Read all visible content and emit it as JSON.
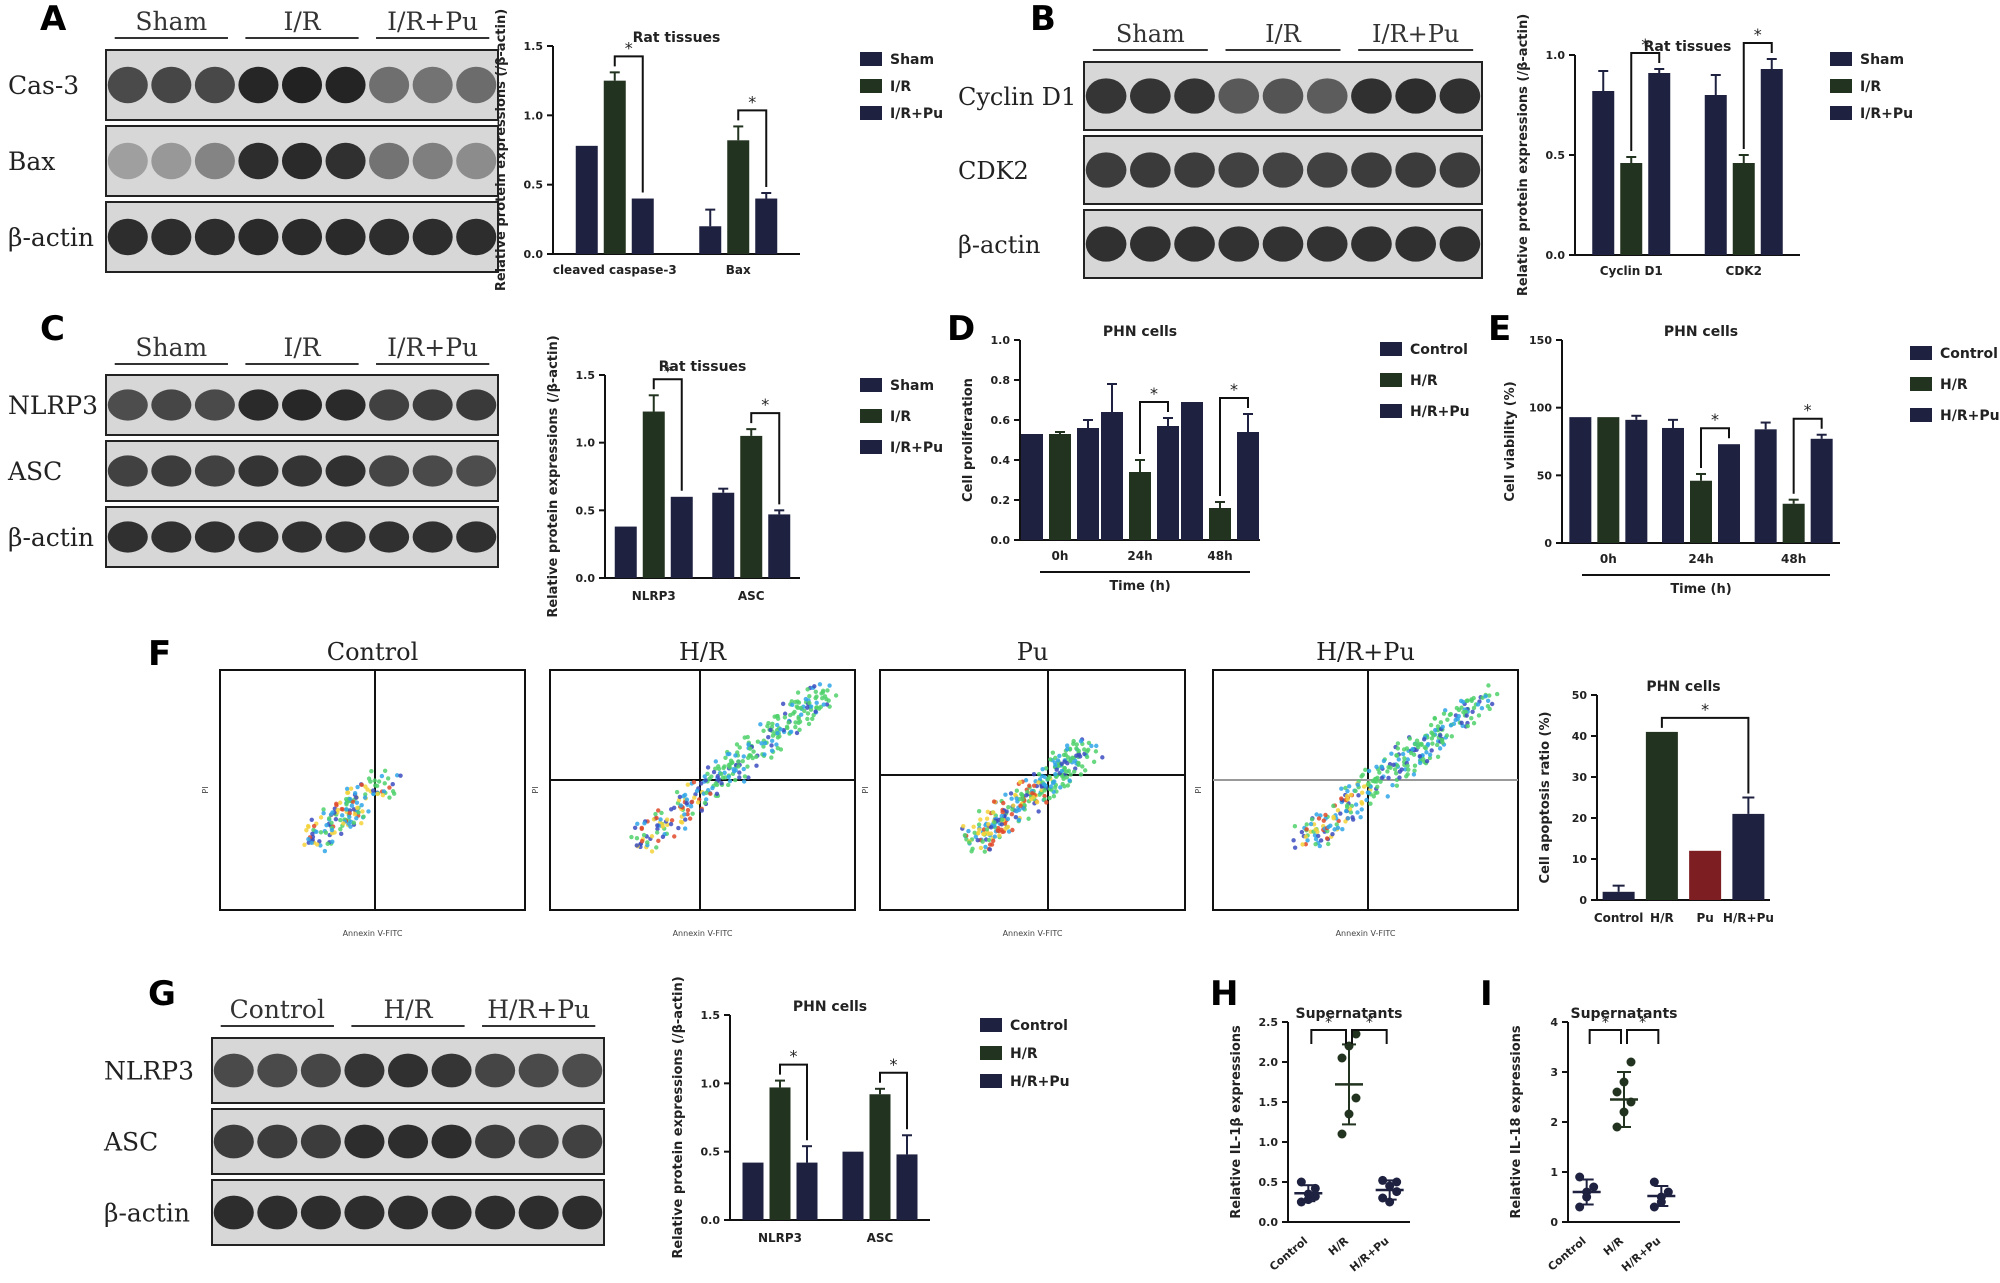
{
  "colors": {
    "navy": "#1e2140",
    "green": "#22331f",
    "red": "#7d1e23",
    "blotDark": "#1d1d1d",
    "blotBg": "#d7d7d7",
    "axis": "#111111"
  },
  "panels": {
    "A": {
      "letter": "A",
      "groups": [
        "Sham",
        "I/R",
        "I/R+Pu"
      ],
      "rows": [
        "Cas-3",
        "Bax",
        "β-actin"
      ],
      "intensity": [
        [
          0.72,
          0.74,
          0.73,
          0.95,
          0.97,
          0.96,
          0.48,
          0.45,
          0.5
        ],
        [
          0.18,
          0.22,
          0.35,
          0.9,
          0.92,
          0.88,
          0.45,
          0.38,
          0.3
        ],
        [
          0.9,
          0.9,
          0.9,
          0.92,
          0.92,
          0.92,
          0.9,
          0.9,
          0.9
        ]
      ]
    },
    "B": {
      "letter": "B",
      "groups": [
        "Sham",
        "I/R",
        "I/R+Pu"
      ],
      "rows": [
        "Cyclin D1",
        "CDK2",
        "β-actin"
      ],
      "intensity": [
        [
          0.85,
          0.86,
          0.86,
          0.62,
          0.65,
          0.6,
          0.88,
          0.9,
          0.88
        ],
        [
          0.8,
          0.82,
          0.8,
          0.78,
          0.76,
          0.77,
          0.8,
          0.81,
          0.8
        ],
        [
          0.88,
          0.88,
          0.88,
          0.87,
          0.87,
          0.87,
          0.88,
          0.88,
          0.88
        ]
      ]
    },
    "C": {
      "letter": "C",
      "groups": [
        "Sham",
        "I/R",
        "I/R+Pu"
      ],
      "rows": [
        "NLRP3",
        "ASC",
        "β-actin"
      ],
      "intensity": [
        [
          0.7,
          0.74,
          0.72,
          0.92,
          0.94,
          0.92,
          0.78,
          0.8,
          0.82
        ],
        [
          0.78,
          0.8,
          0.78,
          0.86,
          0.86,
          0.88,
          0.75,
          0.72,
          0.7
        ],
        [
          0.88,
          0.88,
          0.88,
          0.88,
          0.88,
          0.88,
          0.88,
          0.88,
          0.88
        ]
      ]
    },
    "G": {
      "letter": "G",
      "groups": [
        "Control",
        "H/R",
        "H/R+Pu"
      ],
      "rows": [
        "NLRP3",
        "ASC",
        "β-actin"
      ],
      "intensity": [
        [
          0.72,
          0.72,
          0.74,
          0.85,
          0.88,
          0.85,
          0.75,
          0.72,
          0.7
        ],
        [
          0.8,
          0.8,
          0.8,
          0.9,
          0.9,
          0.9,
          0.8,
          0.78,
          0.78
        ],
        [
          0.9,
          0.9,
          0.9,
          0.9,
          0.9,
          0.9,
          0.9,
          0.9,
          0.9
        ]
      ]
    },
    "D": {
      "letter": "D"
    },
    "E": {
      "letter": "E"
    },
    "F": {
      "letter": "F",
      "flow_titles": [
        "Control",
        "H/R",
        "Pu",
        "H/R+Pu"
      ],
      "y_axis": "PI",
      "x_axis": "Annexin V-FITC"
    },
    "H": {
      "letter": "H"
    },
    "I": {
      "letter": "I"
    }
  },
  "chart_data": [
    {
      "id": "A",
      "type": "bar",
      "title": "Rat tissues",
      "ylabel": "Relative protein expressions (/β-actin)",
      "xlabel": "",
      "categories": [
        "cleaved caspase-3",
        "Bax"
      ],
      "ylim": [
        0,
        1.5
      ],
      "yticks": [
        0,
        0.5,
        1.0,
        1.5
      ],
      "ytick_labels": [
        "0.0",
        "0.5",
        "1.0",
        "1.5"
      ],
      "series": [
        {
          "name": "Sham",
          "values": [
            0.78,
            0.2
          ],
          "errors": [
            0,
            0.12
          ]
        },
        {
          "name": "I/R",
          "values": [
            1.25,
            0.82
          ],
          "errors": [
            0.06,
            0.1
          ]
        },
        {
          "name": "I/R+Pu",
          "values": [
            0.4,
            0.4
          ],
          "errors": [
            0,
            0.04
          ]
        }
      ],
      "significance": [
        {
          "cat": 0,
          "from": 1,
          "to": 2,
          "label": "*"
        },
        {
          "cat": 1,
          "from": 1,
          "to": 2,
          "label": "*"
        }
      ]
    },
    {
      "id": "B",
      "type": "bar",
      "title": "Rat tissues",
      "ylabel": "Relative protein expressions (/β-actin)",
      "xlabel": "",
      "categories": [
        "Cyclin D1",
        "CDK2"
      ],
      "ylim": [
        0,
        1.0
      ],
      "yticks": [
        0,
        0.5,
        1.0
      ],
      "ytick_labels": [
        "0.0",
        "0.5",
        "1.0"
      ],
      "series": [
        {
          "name": "Sham",
          "values": [
            0.82,
            0.8
          ],
          "errors": [
            0.1,
            0.1
          ]
        },
        {
          "name": "I/R",
          "values": [
            0.46,
            0.46
          ],
          "errors": [
            0.03,
            0.04
          ]
        },
        {
          "name": "I/R+Pu",
          "values": [
            0.91,
            0.93
          ],
          "errors": [
            0.02,
            0.05
          ]
        }
      ],
      "significance": [
        {
          "cat": 0,
          "from": 1,
          "to": 2,
          "label": "*"
        },
        {
          "cat": 1,
          "from": 1,
          "to": 2,
          "label": "*"
        }
      ]
    },
    {
      "id": "C",
      "type": "bar",
      "title": "Rat tissues",
      "ylabel": "Relative protein expressions (/β-actin)",
      "xlabel": "",
      "categories": [
        "NLRP3",
        "ASC"
      ],
      "ylim": [
        0,
        1.5
      ],
      "yticks": [
        0,
        0.5,
        1.0,
        1.5
      ],
      "ytick_labels": [
        "0.0",
        "0.5",
        "1.0",
        "1.5"
      ],
      "series": [
        {
          "name": "Sham",
          "values": [
            0.38,
            0.63
          ],
          "errors": [
            0,
            0.03
          ]
        },
        {
          "name": "I/R",
          "values": [
            1.23,
            1.05
          ],
          "errors": [
            0.12,
            0.05
          ]
        },
        {
          "name": "I/R+Pu",
          "values": [
            0.6,
            0.47
          ],
          "errors": [
            0,
            0.03
          ]
        }
      ],
      "significance": [
        {
          "cat": 0,
          "from": 1,
          "to": 2,
          "label": "*"
        },
        {
          "cat": 1,
          "from": 1,
          "to": 2,
          "label": "*"
        }
      ]
    },
    {
      "id": "D",
      "type": "bar",
      "title": "PHN cells",
      "ylabel": "Cell proliferation",
      "xlabel": "Time (h)",
      "categories": [
        "0h",
        "24h",
        "48h"
      ],
      "ylim": [
        0,
        1.0
      ],
      "yticks": [
        0,
        0.2,
        0.4,
        0.6,
        0.8,
        1.0
      ],
      "ytick_labels": [
        "0.0",
        "0.2",
        "0.4",
        "0.6",
        "0.8",
        "1.0"
      ],
      "series": [
        {
          "name": "Control",
          "values": [
            0.53,
            0.64,
            0.69
          ],
          "errors": [
            0,
            0.14,
            0
          ]
        },
        {
          "name": "H/R",
          "values": [
            0.53,
            0.34,
            0.16
          ],
          "errors": [
            0.01,
            0.06,
            0.03
          ]
        },
        {
          "name": "H/R+Pu",
          "values": [
            0.56,
            0.57,
            0.54
          ],
          "errors": [
            0.04,
            0.04,
            0.09
          ]
        }
      ],
      "significance": [
        {
          "cat": 1,
          "from": 1,
          "to": 2,
          "label": "*"
        },
        {
          "cat": 2,
          "from": 1,
          "to": 2,
          "label": "*"
        }
      ]
    },
    {
      "id": "E",
      "type": "bar",
      "title": "PHN cells",
      "ylabel": "Cell viability (%)",
      "xlabel": "Time (h)",
      "categories": [
        "0h",
        "24h",
        "48h"
      ],
      "ylim": [
        0,
        150
      ],
      "yticks": [
        0,
        50,
        100,
        150
      ],
      "ytick_labels": [
        "0",
        "50",
        "100",
        "150"
      ],
      "series": [
        {
          "name": "Control",
          "values": [
            93,
            85,
            84
          ],
          "errors": [
            0,
            6,
            5
          ]
        },
        {
          "name": "H/R",
          "values": [
            93,
            46,
            29
          ],
          "errors": [
            0,
            5,
            3
          ]
        },
        {
          "name": "H/R+Pu",
          "values": [
            91,
            73,
            77
          ],
          "errors": [
            3,
            0,
            3
          ]
        }
      ],
      "significance": [
        {
          "cat": 1,
          "from": 1,
          "to": 2,
          "label": "*"
        },
        {
          "cat": 2,
          "from": 1,
          "to": 2,
          "label": "*"
        }
      ]
    },
    {
      "id": "F",
      "type": "bar",
      "title": "PHN cells",
      "ylabel": "Cell apoptosis ratio (%)",
      "xlabel": "",
      "categories": [
        "Control",
        "H/R",
        "Pu",
        "H/R+Pu"
      ],
      "ylim": [
        0,
        50
      ],
      "yticks": [
        0,
        10,
        20,
        30,
        40,
        50
      ],
      "ytick_labels": [
        "0",
        "10",
        "20",
        "30",
        "40",
        "50"
      ],
      "values": [
        2,
        41,
        12,
        21
      ],
      "errors": [
        1.5,
        0,
        0,
        4
      ],
      "bar_colors": [
        "#1e2140",
        "#22331f",
        "#7d1e23",
        "#1e2140"
      ],
      "significance": [
        {
          "from": 1,
          "to": 3,
          "label": "*"
        }
      ]
    },
    {
      "id": "G",
      "type": "bar",
      "title": "PHN cells",
      "ylabel": "Relative protein expressions (/β-actin)",
      "xlabel": "",
      "categories": [
        "NLRP3",
        "ASC"
      ],
      "ylim": [
        0,
        1.5
      ],
      "yticks": [
        0,
        0.5,
        1.0,
        1.5
      ],
      "ytick_labels": [
        "0.0",
        "0.5",
        "1.0",
        "1.5"
      ],
      "series": [
        {
          "name": "Control",
          "values": [
            0.42,
            0.5
          ],
          "errors": [
            0,
            0
          ]
        },
        {
          "name": "H/R",
          "values": [
            0.97,
            0.92
          ],
          "errors": [
            0.05,
            0.04
          ]
        },
        {
          "name": "H/R+Pu",
          "values": [
            0.42,
            0.48
          ],
          "errors": [
            0.12,
            0.14
          ]
        }
      ],
      "significance": [
        {
          "cat": 0,
          "from": 1,
          "to": 2,
          "label": "*"
        },
        {
          "cat": 1,
          "from": 1,
          "to": 2,
          "label": "*"
        }
      ]
    },
    {
      "id": "H",
      "type": "scatter",
      "title": "Supernatants",
      "ylabel": "Relative IL-1β expressions",
      "xlabel": "",
      "categories": [
        "Control",
        "H/R",
        "H/R+Pu"
      ],
      "ylim": [
        0,
        2.5
      ],
      "yticks": [
        0,
        0.5,
        1.0,
        1.5,
        2.0,
        2.5
      ],
      "ytick_labels": [
        "0.0",
        "0.5",
        "1.0",
        "1.5",
        "2.0",
        "2.5"
      ],
      "points": [
        [
          0.25,
          0.35,
          0.42,
          0.5,
          0.28,
          0.32
        ],
        [
          1.1,
          1.35,
          1.55,
          2.05,
          2.2,
          2.35
        ],
        [
          0.3,
          0.45,
          0.5,
          0.52,
          0.25,
          0.38
        ]
      ],
      "means": [
        0.36,
        1.72,
        0.4
      ],
      "sd": [
        0.1,
        0.5,
        0.12
      ],
      "point_colors": [
        "#1e2140",
        "#22331f",
        "#1e2140"
      ],
      "significance": [
        {
          "from": 0,
          "to": 1,
          "label": "*"
        },
        {
          "from": 1,
          "to": 2,
          "label": "*"
        }
      ]
    },
    {
      "id": "I",
      "type": "scatter",
      "title": "Supernatants",
      "ylabel": "Relative IL-18 expressions",
      "xlabel": "",
      "categories": [
        "Control",
        "H/R",
        "H/R+Pu"
      ],
      "ylim": [
        0,
        4
      ],
      "yticks": [
        0,
        1,
        2,
        3,
        4
      ],
      "ytick_labels": [
        "0",
        "1",
        "2",
        "3",
        "4"
      ],
      "points": [
        [
          0.3,
          0.5,
          0.7,
          0.9,
          0.6
        ],
        [
          1.9,
          2.2,
          2.4,
          2.6,
          2.8,
          3.2
        ],
        [
          0.3,
          0.5,
          0.6,
          0.8,
          0.4
        ]
      ],
      "means": [
        0.6,
        2.45,
        0.52
      ],
      "sd": [
        0.25,
        0.55,
        0.2
      ],
      "point_colors": [
        "#1e2140",
        "#22331f",
        "#1e2140"
      ],
      "significance": [
        {
          "from": 0,
          "to": 1,
          "label": "*"
        },
        {
          "from": 1,
          "to": 2,
          "label": "*"
        }
      ]
    }
  ]
}
